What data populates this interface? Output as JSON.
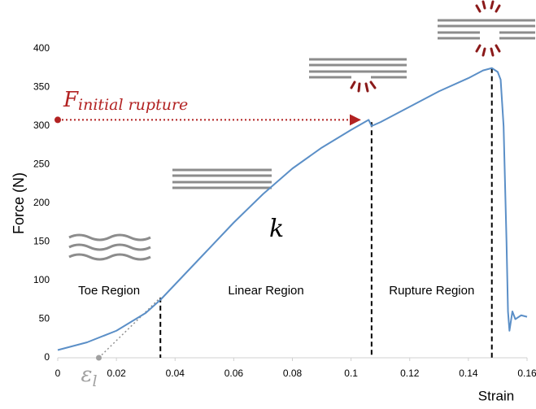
{
  "chart_data": {
    "type": "line",
    "x_label": "Strain",
    "y_label": "Force (N)",
    "x": [
      0,
      0.01,
      0.02,
      0.03,
      0.035,
      0.04,
      0.05,
      0.06,
      0.07,
      0.08,
      0.09,
      0.1,
      0.106,
      0.107,
      0.11,
      0.12,
      0.13,
      0.14,
      0.145,
      0.148,
      0.15,
      0.151,
      0.152,
      0.153,
      0.1535,
      0.154,
      0.155,
      0.156,
      0.158,
      0.16
    ],
    "series": [
      {
        "color": "#5b8fc7",
        "values": [
          10,
          20,
          35,
          58,
          75,
          95,
          135,
          175,
          212,
          245,
          272,
          295,
          308,
          300,
          305,
          325,
          345,
          362,
          372,
          375,
          370,
          360,
          300,
          150,
          60,
          35,
          60,
          50,
          55,
          53
        ]
      }
    ],
    "xlim": [
      0,
      0.16
    ],
    "ylim": [
      0,
      400
    ],
    "xticks": [
      0,
      0.02,
      0.04,
      0.06,
      0.08,
      0.1,
      0.12,
      0.14,
      0.16
    ],
    "yticks": [
      0,
      50,
      100,
      150,
      200,
      250,
      300,
      350,
      400
    ],
    "grid": false,
    "rupture_force": {
      "symbol": "F",
      "subscript": "initial rupture",
      "y": 308,
      "x_end": 0.103,
      "color": "#b22222"
    },
    "stiffness": "k",
    "toe_strain": {
      "symbol": "ε",
      "subscript": "l",
      "x": 0.014,
      "color": "#a0a0a0"
    },
    "dividers": [
      {
        "x": 0.035,
        "y": 78
      },
      {
        "x": 0.107,
        "y": 305
      },
      {
        "x": 0.148,
        "y": 375
      }
    ],
    "regions": [
      "Toe Region",
      "Linear Region",
      "Rupture Region"
    ]
  }
}
